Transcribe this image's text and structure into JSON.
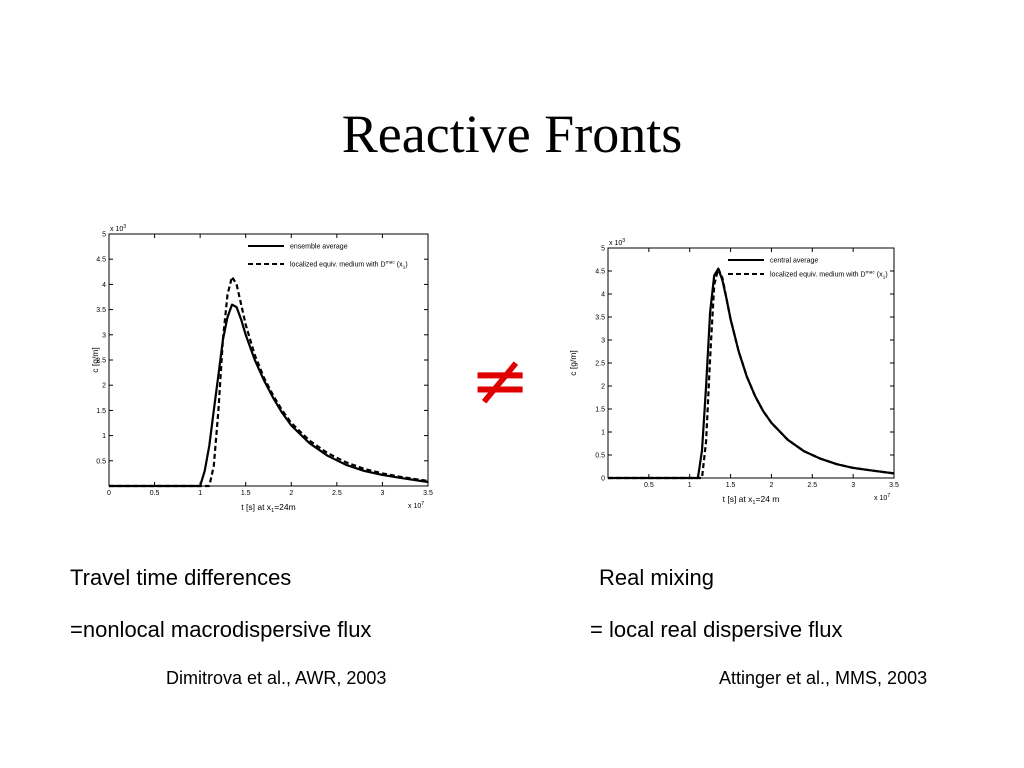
{
  "slide": {
    "title": "Reactive Fronts",
    "neq_symbol": "≠",
    "left": {
      "line1": "Travel time differences",
      "line2": "=nonlocal macrodispersive flux",
      "reference": "Dimitrova et al., AWR, 2003"
    },
    "right": {
      "line1": "Real mixing",
      "line2": "= local real dispersive flux",
      "reference": "Attinger et al., MMS, 2003"
    },
    "neq_color": "#e00000"
  },
  "chart_data": [
    {
      "type": "line",
      "xlabel": "t [s] at x",
      "xlabel_sub": "1",
      "xlabel_tail": "=24m",
      "ylabel": "c [g/m]",
      "x_multiplier": "x 10",
      "x_multiplier_exp": "7",
      "y_multiplier": "x 10",
      "y_multiplier_exp": "3",
      "xlim": [
        0,
        3.5
      ],
      "ylim": [
        0,
        5
      ],
      "xticks": [
        0,
        0.5,
        1,
        1.5,
        2,
        2.5,
        3,
        3.5
      ],
      "xtick_labels": [
        "0",
        "0.5",
        "1",
        "1.5",
        "2",
        "2.5",
        "3",
        "3.5"
      ],
      "yticks": [
        0.5,
        1,
        1.5,
        2,
        2.5,
        3,
        3.5,
        4,
        4.5,
        5
      ],
      "ytick_labels": [
        "0.5",
        "1",
        "1.5",
        "2",
        "2.5",
        "3",
        "3.5",
        "4",
        "4.5",
        "5"
      ],
      "grid": false,
      "legend_position": "top-right",
      "series": [
        {
          "name": "ensemble average",
          "style": "solid",
          "x": [
            0,
            1.0,
            1.05,
            1.1,
            1.15,
            1.2,
            1.25,
            1.3,
            1.35,
            1.4,
            1.45,
            1.5,
            1.6,
            1.7,
            1.8,
            1.9,
            2.0,
            2.2,
            2.4,
            2.6,
            2.8,
            3.0,
            3.2,
            3.5
          ],
          "y": [
            0,
            0,
            0.3,
            0.8,
            1.5,
            2.2,
            2.9,
            3.35,
            3.6,
            3.55,
            3.3,
            3.0,
            2.5,
            2.1,
            1.75,
            1.45,
            1.2,
            0.85,
            0.6,
            0.42,
            0.3,
            0.22,
            0.16,
            0.08
          ]
        },
        {
          "name": "localized equiv. medium with D",
          "name_sup": "mac",
          "name_tail": "(x",
          "name_tail_sub": "1",
          "name_end": ")",
          "style": "dashed",
          "x": [
            0,
            1.1,
            1.15,
            1.2,
            1.25,
            1.3,
            1.35,
            1.4,
            1.45,
            1.5,
            1.6,
            1.7,
            1.8,
            1.9,
            2.0,
            2.2,
            2.4,
            2.6,
            2.8,
            3.0,
            3.2,
            3.5
          ],
          "y": [
            0,
            0,
            0.4,
            1.5,
            2.9,
            3.8,
            4.15,
            4.0,
            3.6,
            3.2,
            2.6,
            2.15,
            1.8,
            1.5,
            1.25,
            0.9,
            0.65,
            0.47,
            0.34,
            0.25,
            0.18,
            0.1
          ]
        }
      ]
    },
    {
      "type": "line",
      "xlabel": "t [s] at x",
      "xlabel_sub": "1",
      "xlabel_tail": "=24 m",
      "ylabel": "c [g/m]",
      "x_multiplier": "x 10",
      "x_multiplier_exp": "7",
      "y_multiplier": "x 10",
      "y_multiplier_exp": "3",
      "xlim": [
        0,
        3.5
      ],
      "ylim": [
        0,
        5
      ],
      "xticks": [
        0.5,
        1,
        1.5,
        2,
        2.5,
        3,
        3.5
      ],
      "xtick_labels": [
        "0.5",
        "1",
        "1.5",
        "2",
        "2.5",
        "3",
        "3.5"
      ],
      "yticks": [
        0,
        0.5,
        1,
        1.5,
        2,
        2.5,
        3,
        3.5,
        4,
        4.5,
        5
      ],
      "ytick_labels": [
        "0",
        "0.5",
        "1",
        "1.5",
        "2",
        "2.5",
        "3",
        "3.5",
        "4",
        "4.5",
        "5"
      ],
      "grid": false,
      "legend_position": "top-right",
      "series": [
        {
          "name": "central average",
          "style": "solid",
          "x": [
            0,
            1.1,
            1.15,
            1.2,
            1.25,
            1.3,
            1.35,
            1.4,
            1.45,
            1.5,
            1.6,
            1.7,
            1.8,
            1.9,
            2.0,
            2.2,
            2.4,
            2.6,
            2.8,
            3.0,
            3.2,
            3.5
          ],
          "y": [
            0,
            0,
            0.6,
            2.0,
            3.6,
            4.4,
            4.55,
            4.3,
            3.9,
            3.45,
            2.75,
            2.2,
            1.78,
            1.45,
            1.2,
            0.83,
            0.58,
            0.42,
            0.3,
            0.22,
            0.17,
            0.1
          ]
        },
        {
          "name": "localized equiv. medium with D",
          "name_sup": "mac",
          "name_tail": "(x",
          "name_tail_sub": "1",
          "name_end": ")",
          "style": "dashed",
          "x": [
            0,
            1.15,
            1.2,
            1.25,
            1.3,
            1.35,
            1.4,
            1.45,
            1.5,
            1.6,
            1.7,
            1.8,
            1.9,
            2.0,
            2.2,
            2.4,
            2.6,
            2.8,
            3.0,
            3.2,
            3.5
          ],
          "y": [
            0,
            0,
            0.8,
            2.6,
            4.2,
            4.55,
            4.35,
            3.9,
            3.45,
            2.75,
            2.2,
            1.78,
            1.45,
            1.2,
            0.83,
            0.58,
            0.42,
            0.3,
            0.22,
            0.17,
            0.1
          ]
        }
      ]
    }
  ]
}
